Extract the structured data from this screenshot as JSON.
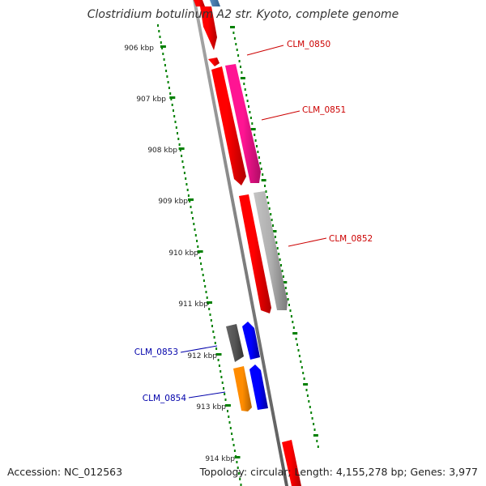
{
  "title": "Clostridium botulinum A2 str. Kyoto, complete genome",
  "footer": {
    "accession": "Accession: NC_012563",
    "summary": "Topology: circular; Length: 4,155,278 bp; Genes: 3,977"
  },
  "ticks": [
    "906 kbp",
    "907 kbp",
    "908 kbp",
    "909 kbp",
    "910 kbp",
    "911 kbp",
    "912 kbp",
    "913 kbp",
    "914 kbp"
  ],
  "gene_labels": [
    {
      "text": "CLM_0850",
      "color": "#cc0000"
    },
    {
      "text": "CLM_0851",
      "color": "#cc0000"
    },
    {
      "text": "CLM_0852",
      "color": "#cc0000"
    },
    {
      "text": "CLM_0853",
      "color": "#0000aa"
    },
    {
      "text": "CLM_0854",
      "color": "#0000aa"
    }
  ],
  "colors": {
    "tick_green": "#008000",
    "backbone": "#808080",
    "gene_red": "#ff0000",
    "gene_pink": "#ff1493",
    "gene_grey": "#b0b0b0",
    "gene_dark_grey": "#555555",
    "gene_blue": "#0000ff",
    "gene_orange": "#ff8c00",
    "gene_steel": "#4682b4"
  }
}
